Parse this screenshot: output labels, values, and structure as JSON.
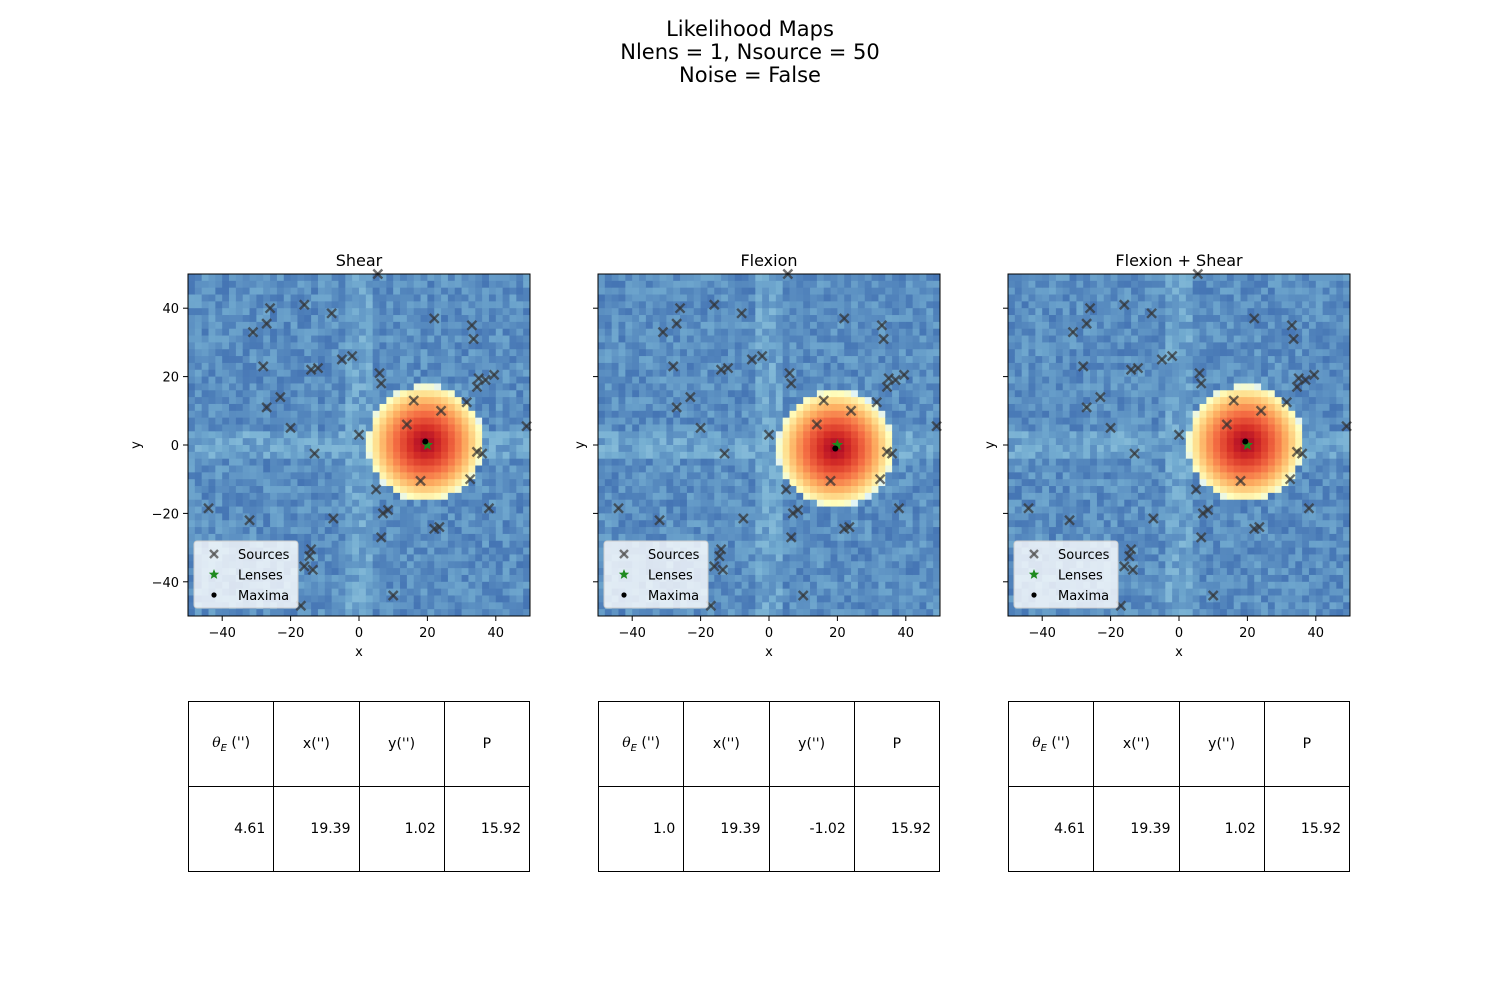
{
  "figure": {
    "title_lines": [
      "Likelihood Maps",
      "Nlens = 1, Nsource = 50",
      "Noise = False"
    ]
  },
  "chart_data": [
    {
      "type": "heatmap",
      "title": "Shear",
      "xlabel": "x",
      "ylabel": "y",
      "xlim": [
        -50,
        50
      ],
      "ylim": [
        -50,
        50
      ],
      "xticks": [
        -40,
        -20,
        0,
        20,
        40
      ],
      "yticks": [
        -40,
        -20,
        0,
        20,
        40
      ],
      "colormap": "RdYlBu_r",
      "peak": {
        "x": 19.4,
        "y": 0.5,
        "radius": 17
      },
      "legend": {
        "placement": "lower-left",
        "entries": [
          "Sources",
          "Lenses",
          "Maxima"
        ]
      },
      "lenses": [
        {
          "x": 20,
          "y": 0
        }
      ],
      "maxima": [
        {
          "x": 19.39,
          "y": 1.02
        }
      ],
      "table": {
        "headers": [
          "θE ('')",
          "x('')",
          "y('')",
          "P"
        ],
        "values": [
          "4.61",
          "19.39",
          "1.02",
          "15.92"
        ]
      }
    },
    {
      "type": "heatmap",
      "title": "Flexion",
      "xlabel": "x",
      "ylabel": "y",
      "xlim": [
        -50,
        50
      ],
      "ylim": [
        -50,
        50
      ],
      "xticks": [
        -40,
        -20,
        0,
        20,
        40
      ],
      "yticks": [
        -40,
        -20,
        0,
        20,
        40
      ],
      "colormap": "RdYlBu_r",
      "peak": {
        "x": 19.4,
        "y": -1,
        "radius": 17
      },
      "legend": {
        "placement": "lower-left",
        "entries": [
          "Sources",
          "Lenses",
          "Maxima"
        ]
      },
      "lenses": [
        {
          "x": 20,
          "y": 0
        }
      ],
      "maxima": [
        {
          "x": 19.39,
          "y": -1.02
        }
      ],
      "table": {
        "headers": [
          "θE ('')",
          "x('')",
          "y('')",
          "P"
        ],
        "values": [
          "1.0",
          "19.39",
          "-1.02",
          "15.92"
        ]
      }
    },
    {
      "type": "heatmap",
      "title": "Flexion + Shear",
      "xlabel": "x",
      "ylabel": "y",
      "xlim": [
        -50,
        50
      ],
      "ylim": [
        -50,
        50
      ],
      "xticks": [
        -40,
        -20,
        0,
        20,
        40
      ],
      "yticks": [
        -40,
        -20,
        0,
        20,
        40
      ],
      "colormap": "RdYlBu_r",
      "peak": {
        "x": 19.4,
        "y": 0.5,
        "radius": 17
      },
      "legend": {
        "placement": "lower-left",
        "entries": [
          "Sources",
          "Lenses",
          "Maxima"
        ]
      },
      "lenses": [
        {
          "x": 20,
          "y": 0
        }
      ],
      "maxima": [
        {
          "x": 19.39,
          "y": 1.02
        }
      ],
      "table": {
        "headers": [
          "θE ('')",
          "x('')",
          "y('')",
          "P"
        ],
        "values": [
          "4.61",
          "19.39",
          "1.02",
          "15.92"
        ]
      }
    }
  ],
  "sources": [
    {
      "x": 5.5,
      "y": 50
    },
    {
      "x": -16,
      "y": 41
    },
    {
      "x": -26,
      "y": 40
    },
    {
      "x": -8,
      "y": 38.5
    },
    {
      "x": 22,
      "y": 37
    },
    {
      "x": 33,
      "y": 35
    },
    {
      "x": -31,
      "y": 33
    },
    {
      "x": -27,
      "y": 35.5
    },
    {
      "x": 33.5,
      "y": 31
    },
    {
      "x": -5,
      "y": 25
    },
    {
      "x": -2,
      "y": 26
    },
    {
      "x": -14,
      "y": 22
    },
    {
      "x": -12,
      "y": 22.5
    },
    {
      "x": -28,
      "y": 23
    },
    {
      "x": 6,
      "y": 21
    },
    {
      "x": 6.5,
      "y": 18
    },
    {
      "x": 34.5,
      "y": 17
    },
    {
      "x": 35,
      "y": 19.5
    },
    {
      "x": 37,
      "y": 19
    },
    {
      "x": 39.5,
      "y": 20.5
    },
    {
      "x": -23,
      "y": 14
    },
    {
      "x": 16,
      "y": 13
    },
    {
      "x": 31.5,
      "y": 12.5
    },
    {
      "x": -27,
      "y": 11
    },
    {
      "x": 24,
      "y": 10
    },
    {
      "x": 14,
      "y": 6
    },
    {
      "x": -20,
      "y": 5
    },
    {
      "x": 0,
      "y": 3
    },
    {
      "x": 49,
      "y": 5.5
    },
    {
      "x": 34.5,
      "y": -2
    },
    {
      "x": 36,
      "y": -2.5
    },
    {
      "x": -13,
      "y": -2.5
    },
    {
      "x": 32.5,
      "y": -10
    },
    {
      "x": 18,
      "y": -10.5
    },
    {
      "x": 5,
      "y": -13
    },
    {
      "x": -44,
      "y": -18.5
    },
    {
      "x": 8.5,
      "y": -19
    },
    {
      "x": 7,
      "y": -20
    },
    {
      "x": 38,
      "y": -18.5
    },
    {
      "x": -7.5,
      "y": -21.5
    },
    {
      "x": -32,
      "y": -22
    },
    {
      "x": 23.5,
      "y": -24
    },
    {
      "x": 22,
      "y": -24.5
    },
    {
      "x": 6.5,
      "y": -27
    },
    {
      "x": -14,
      "y": -30.5
    },
    {
      "x": -14.5,
      "y": -32.5
    },
    {
      "x": -16,
      "y": -35.5
    },
    {
      "x": -13.5,
      "y": -36.5
    },
    {
      "x": 10,
      "y": -44
    },
    {
      "x": -17,
      "y": -47
    }
  ]
}
